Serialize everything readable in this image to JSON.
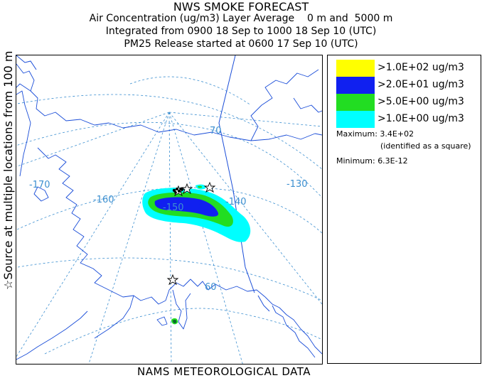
{
  "header": {
    "title": "NWS SMOKE FORECAST",
    "line2": "Air Concentration (ug/m3) Layer Average    0 m and  5000 m",
    "line3": "Integrated from 0900 18 Sep to 1000 18 Sep 10 (UTC)",
    "line4": "PM25 Release started at 0600 17 Sep 10 (UTC)"
  },
  "side_label": {
    "star": "☆",
    "text": "Source at multiple locations  from  100 m"
  },
  "footer": "NAMS METEOROLOGICAL DATA",
  "map": {
    "lon_labels": [
      "-170",
      "-160",
      "-150",
      "-140",
      "-130"
    ],
    "lat_labels": [
      "70",
      "60"
    ],
    "colors": {
      "coast": "#1a4dd8",
      "graticule": "#3c8fd0",
      "level_yellow": "#ffff00",
      "level_blue": "#0a1ef0",
      "level_green": "#28d028",
      "level_cyan": "#00ffff"
    }
  },
  "legend": {
    "items": [
      {
        "color": "#ffff00",
        "label": ">1.0E+02 ug/m3"
      },
      {
        "color": "#1020f0",
        "label": ">2.0E+01 ug/m3"
      },
      {
        "color": "#22dd22",
        "label": ">5.0E+00 ug/m3"
      },
      {
        "color": "#00ffff",
        "label": ">1.0E+00 ug/m3"
      }
    ],
    "maximum_label": "Maximum:",
    "maximum_value": "3.4E+02",
    "maximum_note": "(identified as a square)",
    "minimum_label": "Minimum:",
    "minimum_value": "6.3E-12"
  }
}
